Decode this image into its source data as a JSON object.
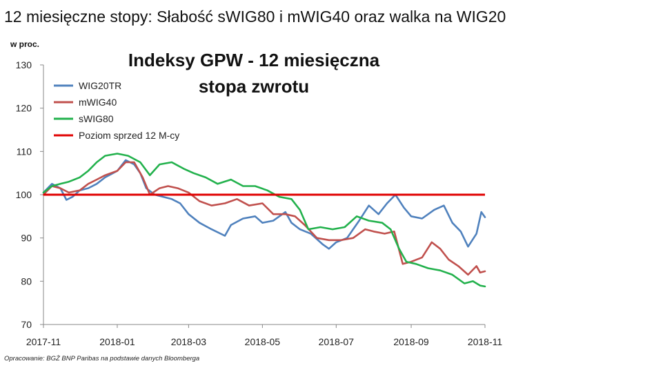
{
  "headline": "12 miesięczne stopy:  Słabość sWIG80 i mWIG40 oraz walka na WIG20",
  "source": "Opracowanie: BGŻ BNP Paribas na podstawie danych Bloomberga",
  "colors": {
    "WIG20TR": "#4f81bd",
    "mWIG40": "#c0504d",
    "sWIG80": "#22b14c",
    "reference": "#e00000",
    "axis": "#888888"
  },
  "chart_data": {
    "type": "line",
    "title": "Indeksy GPW - 12 miesięczna stopa zwrotu",
    "title_lines": [
      "Indeksy GPW - 12 miesięczna",
      "stopa zwrotu"
    ],
    "ylabel": "w proc.",
    "xlabel": "",
    "ylim": [
      70,
      130
    ],
    "yticks": [
      70,
      80,
      90,
      100,
      110,
      120,
      130
    ],
    "xlim": [
      "2017-11-01",
      "2018-11-01"
    ],
    "xticks": [
      "2017-11",
      "2018-01",
      "2018-03",
      "2018-05",
      "2018-07",
      "2018-09",
      "2018-11"
    ],
    "grid": false,
    "legend_position": "top-left",
    "reference_line": {
      "name": "Poziom sprzed 12 M-cy",
      "value": 100
    },
    "series": [
      {
        "name": "WIG20TR",
        "points": [
          [
            "2017-11-01",
            100.5
          ],
          [
            "2017-11-08",
            102.5
          ],
          [
            "2017-11-15",
            101.5
          ],
          [
            "2017-11-20",
            98.8
          ],
          [
            "2017-11-25",
            99.5
          ],
          [
            "2017-12-01",
            101.0
          ],
          [
            "2017-12-08",
            101.5
          ],
          [
            "2017-12-15",
            102.5
          ],
          [
            "2017-12-22",
            104.0
          ],
          [
            "2018-01-01",
            105.5
          ],
          [
            "2018-01-08",
            108.0
          ],
          [
            "2018-01-15",
            107.0
          ],
          [
            "2018-01-20",
            105.0
          ],
          [
            "2018-01-25",
            101.5
          ],
          [
            "2018-02-01",
            100.0
          ],
          [
            "2018-02-08",
            99.5
          ],
          [
            "2018-02-15",
            99.0
          ],
          [
            "2018-02-22",
            98.0
          ],
          [
            "2018-03-01",
            95.5
          ],
          [
            "2018-03-10",
            93.5
          ],
          [
            "2018-03-20",
            92.0
          ],
          [
            "2018-03-31",
            90.5
          ],
          [
            "2018-04-05",
            93.0
          ],
          [
            "2018-04-15",
            94.5
          ],
          [
            "2018-04-25",
            95.0
          ],
          [
            "2018-05-01",
            93.5
          ],
          [
            "2018-05-10",
            94.0
          ],
          [
            "2018-05-20",
            96.0
          ],
          [
            "2018-05-25",
            93.5
          ],
          [
            "2018-06-01",
            92.0
          ],
          [
            "2018-06-10",
            91.0
          ],
          [
            "2018-06-20",
            88.5
          ],
          [
            "2018-06-25",
            87.5
          ],
          [
            "2018-07-01",
            89.0
          ],
          [
            "2018-07-10",
            90.0
          ],
          [
            "2018-07-20",
            94.0
          ],
          [
            "2018-07-28",
            97.5
          ],
          [
            "2018-08-05",
            95.5
          ],
          [
            "2018-08-12",
            98.0
          ],
          [
            "2018-08-19",
            100.0
          ],
          [
            "2018-08-26",
            97.0
          ],
          [
            "2018-09-01",
            95.0
          ],
          [
            "2018-09-10",
            94.5
          ],
          [
            "2018-09-20",
            96.5
          ],
          [
            "2018-09-28",
            97.5
          ],
          [
            "2018-10-05",
            93.5
          ],
          [
            "2018-10-12",
            91.5
          ],
          [
            "2018-10-18",
            88.0
          ],
          [
            "2018-10-25",
            91.0
          ],
          [
            "2018-10-29",
            96.0
          ],
          [
            "2018-11-01",
            94.8
          ]
        ]
      },
      {
        "name": "mWIG40",
        "points": [
          [
            "2017-11-01",
            100.0
          ],
          [
            "2017-11-08",
            102.0
          ],
          [
            "2017-11-15",
            101.5
          ],
          [
            "2017-11-22",
            100.5
          ],
          [
            "2017-12-01",
            101.0
          ],
          [
            "2017-12-08",
            102.5
          ],
          [
            "2017-12-15",
            103.5
          ],
          [
            "2017-12-22",
            104.5
          ],
          [
            "2018-01-01",
            105.5
          ],
          [
            "2018-01-08",
            107.5
          ],
          [
            "2018-01-15",
            107.5
          ],
          [
            "2018-01-22",
            104.0
          ],
          [
            "2018-01-28",
            100.0
          ],
          [
            "2018-02-05",
            101.5
          ],
          [
            "2018-02-12",
            102.0
          ],
          [
            "2018-02-20",
            101.5
          ],
          [
            "2018-03-01",
            100.5
          ],
          [
            "2018-03-10",
            98.5
          ],
          [
            "2018-03-20",
            97.5
          ],
          [
            "2018-03-31",
            98.0
          ],
          [
            "2018-04-10",
            99.0
          ],
          [
            "2018-04-20",
            97.5
          ],
          [
            "2018-05-01",
            98.0
          ],
          [
            "2018-05-10",
            95.5
          ],
          [
            "2018-05-20",
            95.5
          ],
          [
            "2018-05-28",
            95.0
          ],
          [
            "2018-06-05",
            93.0
          ],
          [
            "2018-06-15",
            90.0
          ],
          [
            "2018-06-25",
            89.5
          ],
          [
            "2018-07-05",
            89.5
          ],
          [
            "2018-07-15",
            90.0
          ],
          [
            "2018-07-25",
            92.0
          ],
          [
            "2018-08-01",
            91.5
          ],
          [
            "2018-08-10",
            91.0
          ],
          [
            "2018-08-18",
            91.5
          ],
          [
            "2018-08-25",
            84.0
          ],
          [
            "2018-09-01",
            84.5
          ],
          [
            "2018-09-10",
            85.5
          ],
          [
            "2018-09-18",
            89.0
          ],
          [
            "2018-09-25",
            87.5
          ],
          [
            "2018-10-02",
            85.0
          ],
          [
            "2018-10-10",
            83.5
          ],
          [
            "2018-10-18",
            81.5
          ],
          [
            "2018-10-25",
            83.5
          ],
          [
            "2018-10-28",
            82.0
          ],
          [
            "2018-11-01",
            82.3
          ]
        ]
      },
      {
        "name": "sWIG80",
        "points": [
          [
            "2017-11-01",
            100.5
          ],
          [
            "2017-11-08",
            102.0
          ],
          [
            "2017-11-15",
            102.5
          ],
          [
            "2017-11-22",
            103.0
          ],
          [
            "2017-12-01",
            104.0
          ],
          [
            "2017-12-08",
            105.5
          ],
          [
            "2017-12-15",
            107.5
          ],
          [
            "2017-12-22",
            109.0
          ],
          [
            "2018-01-01",
            109.5
          ],
          [
            "2018-01-10",
            109.0
          ],
          [
            "2018-01-20",
            107.5
          ],
          [
            "2018-01-28",
            104.5
          ],
          [
            "2018-02-05",
            107.0
          ],
          [
            "2018-02-15",
            107.5
          ],
          [
            "2018-02-25",
            106.0
          ],
          [
            "2018-03-05",
            105.0
          ],
          [
            "2018-03-15",
            104.0
          ],
          [
            "2018-03-25",
            102.5
          ],
          [
            "2018-04-05",
            103.5
          ],
          [
            "2018-04-15",
            102.0
          ],
          [
            "2018-04-25",
            102.0
          ],
          [
            "2018-05-05",
            101.0
          ],
          [
            "2018-05-15",
            99.5
          ],
          [
            "2018-05-25",
            99.0
          ],
          [
            "2018-06-01",
            96.5
          ],
          [
            "2018-06-08",
            92.0
          ],
          [
            "2018-06-18",
            92.5
          ],
          [
            "2018-06-28",
            92.0
          ],
          [
            "2018-07-08",
            92.5
          ],
          [
            "2018-07-18",
            95.0
          ],
          [
            "2018-07-28",
            94.0
          ],
          [
            "2018-08-08",
            93.5
          ],
          [
            "2018-08-15",
            92.0
          ],
          [
            "2018-08-22",
            87.5
          ],
          [
            "2018-08-28",
            84.5
          ],
          [
            "2018-09-05",
            84.0
          ],
          [
            "2018-09-15",
            83.0
          ],
          [
            "2018-09-25",
            82.5
          ],
          [
            "2018-10-05",
            81.5
          ],
          [
            "2018-10-15",
            79.5
          ],
          [
            "2018-10-22",
            80.0
          ],
          [
            "2018-10-28",
            79.0
          ],
          [
            "2018-11-01",
            78.8
          ]
        ]
      }
    ]
  }
}
